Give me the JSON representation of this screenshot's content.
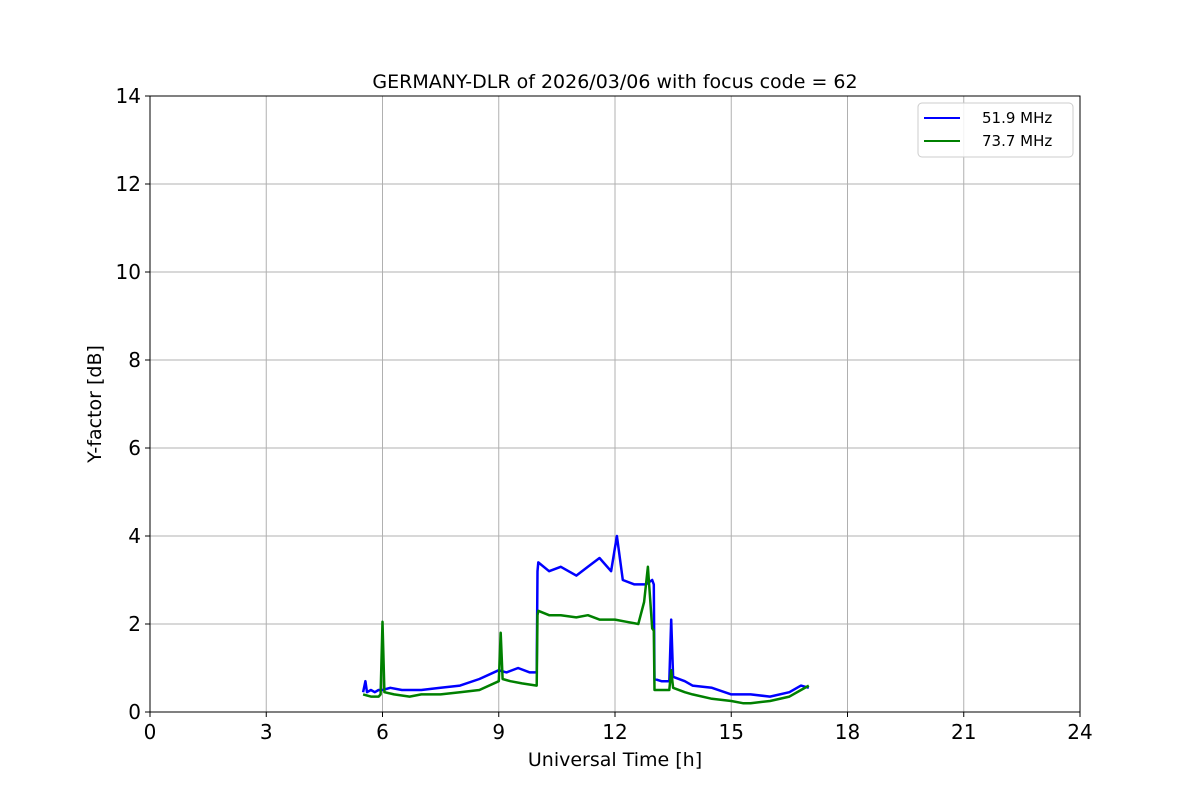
{
  "chart_data": {
    "type": "line",
    "title": "GERMANY-DLR of 2026/03/06 with focus code = 62",
    "xlabel": "Universal Time [h]",
    "ylabel": "Y-factor [dB]",
    "xlim": [
      0,
      24
    ],
    "ylim": [
      0,
      14
    ],
    "xticks": [
      0,
      3,
      6,
      9,
      12,
      15,
      18,
      21,
      24
    ],
    "yticks": [
      0,
      2,
      4,
      6,
      8,
      10,
      12,
      14
    ],
    "xtick_labels": [
      "0",
      "3",
      "6",
      "9",
      "12",
      "15",
      "18",
      "21",
      "24"
    ],
    "ytick_labels": [
      "0",
      "2",
      "4",
      "6",
      "8",
      "10",
      "12",
      "14"
    ],
    "grid": true,
    "legend_position": "top-right",
    "series": [
      {
        "name": "51.9 MHz",
        "color": "#0000ff",
        "x": [
          5.5,
          5.56,
          5.6,
          5.7,
          5.8,
          5.9,
          6.0,
          6.2,
          6.5,
          7.0,
          7.5,
          8.0,
          8.5,
          9.0,
          9.2,
          9.5,
          9.8,
          9.98,
          10.0,
          10.02,
          10.3,
          10.6,
          11.0,
          11.3,
          11.6,
          11.9,
          12.05,
          12.2,
          12.5,
          12.8,
          12.96,
          13.0,
          13.02,
          13.2,
          13.4,
          13.45,
          13.5,
          13.8,
          14.0,
          14.5,
          15.0,
          15.5,
          16.0,
          16.5,
          16.8,
          17.0
        ],
        "y": [
          0.45,
          0.7,
          0.45,
          0.5,
          0.45,
          0.5,
          0.5,
          0.55,
          0.5,
          0.5,
          0.55,
          0.6,
          0.75,
          0.95,
          0.9,
          1.0,
          0.9,
          0.9,
          3.2,
          3.4,
          3.2,
          3.3,
          3.1,
          3.3,
          3.5,
          3.2,
          4.0,
          3.0,
          2.9,
          2.9,
          3.0,
          2.9,
          0.75,
          0.7,
          0.7,
          2.1,
          0.8,
          0.7,
          0.6,
          0.55,
          0.4,
          0.4,
          0.35,
          0.45,
          0.6,
          0.55
        ]
      },
      {
        "name": "73.7 MHz",
        "color": "#008000",
        "x": [
          5.5,
          5.7,
          5.9,
          5.95,
          6.0,
          6.05,
          6.3,
          6.7,
          7.0,
          7.5,
          8.0,
          8.5,
          9.0,
          9.05,
          9.1,
          9.3,
          9.6,
          9.98,
          10.0,
          10.02,
          10.3,
          10.6,
          11.0,
          11.3,
          11.6,
          12.0,
          12.3,
          12.6,
          12.75,
          12.85,
          12.96,
          13.0,
          13.02,
          13.2,
          13.4,
          13.45,
          13.5,
          13.8,
          14.0,
          14.5,
          15.0,
          15.3,
          15.5,
          16.0,
          16.5,
          16.8,
          17.0
        ],
        "y": [
          0.4,
          0.35,
          0.35,
          0.4,
          2.05,
          0.45,
          0.4,
          0.35,
          0.4,
          0.4,
          0.45,
          0.5,
          0.7,
          1.8,
          0.75,
          0.7,
          0.65,
          0.6,
          2.2,
          2.3,
          2.2,
          2.2,
          2.15,
          2.2,
          2.1,
          2.1,
          2.05,
          2.0,
          2.5,
          3.3,
          1.9,
          1.85,
          0.5,
          0.5,
          0.5,
          0.95,
          0.55,
          0.45,
          0.4,
          0.3,
          0.25,
          0.2,
          0.2,
          0.25,
          0.35,
          0.5,
          0.6
        ]
      }
    ]
  }
}
